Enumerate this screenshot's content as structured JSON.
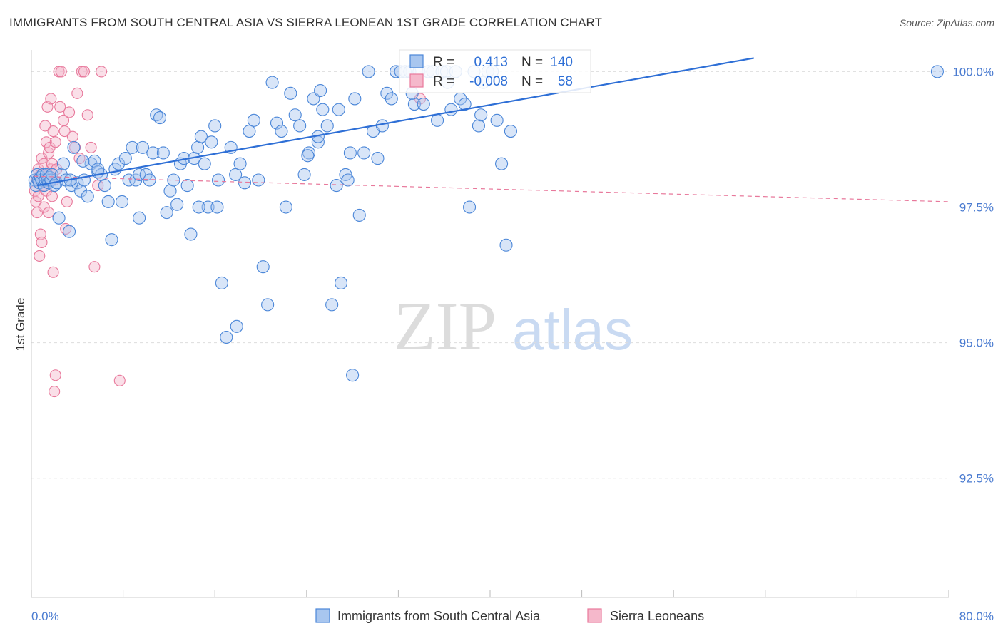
{
  "title": "IMMIGRANTS FROM SOUTH CENTRAL ASIA VS SIERRA LEONEAN 1ST GRADE CORRELATION CHART",
  "source": "Source: ZipAtlas.com",
  "watermark": {
    "zip": "ZIP",
    "atlas": "atlas"
  },
  "colors": {
    "blue": "#4a86d8",
    "blue_fill": "#a8c6ef",
    "pink": "#e8789b",
    "pink_fill": "#f5b8cb",
    "trend_blue": "#2e6fd6",
    "trend_pink": "#e8789b",
    "grid": "#dddddd",
    "tick_text": "#4a7bd0"
  },
  "stats": {
    "series1": {
      "r_label": "R =",
      "r_value": "0.413",
      "n_label": "N =",
      "n_value": "140"
    },
    "series2": {
      "r_label": "R =",
      "r_value": "-0.008",
      "n_label": "N =",
      "n_value": "58"
    }
  },
  "chart_data": {
    "type": "scatter",
    "title": "IMMIGRANTS FROM SOUTH CENTRAL ASIA VS SIERRA LEONEAN 1ST GRADE CORRELATION CHART",
    "xlabel": "",
    "ylabel": "1st Grade",
    "xlim": [
      0,
      80
    ],
    "ylim": [
      90.3,
      100.4
    ],
    "x_tick_labels": [
      {
        "value": 0,
        "label": "0.0%"
      },
      {
        "value": 80,
        "label": "80.0%"
      }
    ],
    "y_tick_labels": [
      {
        "value": 100,
        "label": "100.0%"
      },
      {
        "value": 97.5,
        "label": "97.5%"
      },
      {
        "value": 95,
        "label": "95.0%"
      },
      {
        "value": 92.5,
        "label": "92.5%"
      }
    ],
    "legend": [
      "Immigrants from South Central Asia",
      "Sierra Leoneans"
    ],
    "series": [
      {
        "name": "Immigrants from South Central Asia",
        "r": 0.413,
        "n": 140,
        "trend": {
          "x": [
            0.5,
            63
          ],
          "y": [
            97.9,
            100.25
          ]
        },
        "points": [
          [
            0.3,
            98.0
          ],
          [
            0.4,
            97.9
          ],
          [
            0.5,
            98.1
          ],
          [
            0.6,
            98.0
          ],
          [
            0.7,
            97.95
          ],
          [
            0.8,
            98.05
          ],
          [
            0.9,
            98.0
          ],
          [
            1.0,
            98.1
          ],
          [
            1.1,
            97.9
          ],
          [
            1.2,
            98.0
          ],
          [
            1.3,
            98.1
          ],
          [
            1.4,
            98.0
          ],
          [
            1.5,
            97.95
          ],
          [
            1.6,
            98.05
          ],
          [
            1.7,
            98.0
          ],
          [
            1.8,
            98.1
          ],
          [
            2.0,
            97.9
          ],
          [
            2.2,
            97.95
          ],
          [
            2.4,
            97.3
          ],
          [
            2.6,
            98.1
          ],
          [
            2.8,
            98.3
          ],
          [
            3.0,
            98.0
          ],
          [
            3.3,
            97.05
          ],
          [
            3.5,
            97.9
          ],
          [
            3.7,
            98.6
          ],
          [
            4.0,
            97.95
          ],
          [
            4.3,
            97.8
          ],
          [
            4.6,
            98.0
          ],
          [
            4.9,
            97.7
          ],
          [
            5.2,
            98.3
          ],
          [
            5.5,
            98.35
          ],
          [
            5.8,
            98.15
          ],
          [
            6.1,
            98.1
          ],
          [
            6.4,
            97.9
          ],
          [
            6.7,
            97.6
          ],
          [
            7.0,
            96.9
          ],
          [
            7.3,
            98.2
          ],
          [
            7.6,
            98.3
          ],
          [
            7.9,
            97.6
          ],
          [
            8.2,
            98.4
          ],
          [
            8.5,
            98.0
          ],
          [
            8.8,
            98.6
          ],
          [
            9.1,
            98.0
          ],
          [
            9.4,
            98.1
          ],
          [
            9.7,
            98.6
          ],
          [
            10.0,
            98.1
          ],
          [
            10.3,
            98.0
          ],
          [
            10.6,
            98.5
          ],
          [
            10.9,
            99.2
          ],
          [
            11.2,
            99.15
          ],
          [
            11.5,
            98.5
          ],
          [
            11.8,
            97.4
          ],
          [
            12.1,
            97.8
          ],
          [
            12.4,
            98.0
          ],
          [
            12.7,
            97.55
          ],
          [
            13.0,
            98.3
          ],
          [
            13.3,
            98.4
          ],
          [
            13.6,
            97.9
          ],
          [
            13.9,
            97.0
          ],
          [
            14.2,
            98.4
          ],
          [
            14.5,
            98.6
          ],
          [
            14.8,
            98.8
          ],
          [
            15.1,
            98.3
          ],
          [
            15.4,
            97.5
          ],
          [
            15.7,
            98.7
          ],
          [
            16.0,
            99.0
          ],
          [
            16.3,
            98.0
          ],
          [
            16.6,
            96.1
          ],
          [
            17.0,
            95.1
          ],
          [
            17.4,
            98.6
          ],
          [
            17.8,
            98.1
          ],
          [
            18.2,
            98.3
          ],
          [
            18.6,
            97.95
          ],
          [
            19.0,
            98.9
          ],
          [
            19.4,
            99.1
          ],
          [
            19.8,
            98.0
          ],
          [
            20.2,
            96.4
          ],
          [
            20.6,
            95.7
          ],
          [
            21.0,
            99.8
          ],
          [
            21.4,
            99.05
          ],
          [
            21.8,
            98.9
          ],
          [
            22.2,
            97.5
          ],
          [
            22.6,
            99.6
          ],
          [
            23.0,
            99.2
          ],
          [
            23.4,
            99.0
          ],
          [
            23.8,
            98.1
          ],
          [
            24.2,
            98.5
          ],
          [
            24.6,
            99.5
          ],
          [
            25.0,
            98.7
          ],
          [
            25.4,
            99.3
          ],
          [
            25.8,
            99.0
          ],
          [
            26.2,
            95.7
          ],
          [
            26.6,
            97.9
          ],
          [
            27.0,
            96.1
          ],
          [
            27.4,
            98.1
          ],
          [
            27.8,
            98.5
          ],
          [
            28.2,
            99.5
          ],
          [
            28.6,
            97.35
          ],
          [
            29.0,
            98.5
          ],
          [
            29.4,
            100.0
          ],
          [
            29.8,
            98.9
          ],
          [
            30.2,
            98.4
          ],
          [
            30.6,
            99.0
          ],
          [
            31.0,
            99.6
          ],
          [
            31.4,
            99.5
          ],
          [
            31.8,
            100.0
          ],
          [
            32.2,
            100.0
          ],
          [
            32.6,
            100.0
          ],
          [
            33.0,
            100.0
          ],
          [
            33.4,
            99.4
          ],
          [
            33.8,
            100.0
          ],
          [
            34.2,
            99.4
          ],
          [
            34.6,
            100.0
          ],
          [
            35.0,
            100.0
          ],
          [
            35.4,
            99.1
          ],
          [
            35.8,
            100.0
          ],
          [
            36.2,
            100.0
          ],
          [
            36.6,
            99.3
          ],
          [
            37.0,
            100.0
          ],
          [
            37.4,
            99.5
          ],
          [
            37.8,
            99.4
          ],
          [
            38.2,
            97.5
          ],
          [
            38.6,
            100.0
          ],
          [
            39.0,
            99.0
          ],
          [
            39.4,
            99.8
          ],
          [
            39.8,
            100.0
          ],
          [
            40.2,
            100.0
          ],
          [
            40.6,
            99.1
          ],
          [
            41.0,
            98.3
          ],
          [
            41.4,
            96.8
          ],
          [
            41.8,
            98.9
          ],
          [
            25.2,
            99.65
          ],
          [
            5.8,
            98.2
          ],
          [
            4.5,
            98.35
          ],
          [
            26.8,
            99.3
          ],
          [
            36.3,
            99.8
          ],
          [
            39.2,
            99.2
          ],
          [
            79.0,
            100.0
          ],
          [
            28.0,
            94.4
          ],
          [
            17.9,
            95.3
          ],
          [
            24.1,
            98.45
          ],
          [
            33.2,
            99.6
          ],
          [
            14.6,
            97.5
          ],
          [
            27.6,
            98.0
          ],
          [
            16.2,
            97.5
          ],
          [
            9.4,
            97.3
          ],
          [
            25.0,
            98.8
          ],
          [
            3.4,
            98.0
          ]
        ]
      },
      {
        "name": "Sierra Leoneans",
        "r": -0.008,
        "n": 58,
        "trend": {
          "x": [
            0.2,
            80
          ],
          "y": [
            98.07,
            97.6
          ]
        },
        "points": [
          [
            0.3,
            97.8
          ],
          [
            0.4,
            97.6
          ],
          [
            0.5,
            98.0
          ],
          [
            0.5,
            97.4
          ],
          [
            0.6,
            98.2
          ],
          [
            0.6,
            97.7
          ],
          [
            0.7,
            98.0
          ],
          [
            0.7,
            96.6
          ],
          [
            0.8,
            98.1
          ],
          [
            0.8,
            97.0
          ],
          [
            0.9,
            98.4
          ],
          [
            0.9,
            96.85
          ],
          [
            1.0,
            98.0
          ],
          [
            1.0,
            97.9
          ],
          [
            1.1,
            98.3
          ],
          [
            1.1,
            97.5
          ],
          [
            1.2,
            98.0
          ],
          [
            1.2,
            99.0
          ],
          [
            1.3,
            97.8
          ],
          [
            1.3,
            98.7
          ],
          [
            1.4,
            98.1
          ],
          [
            1.4,
            99.35
          ],
          [
            1.5,
            98.5
          ],
          [
            1.5,
            97.4
          ],
          [
            1.6,
            98.0
          ],
          [
            1.6,
            98.6
          ],
          [
            1.7,
            99.5
          ],
          [
            1.7,
            98.2
          ],
          [
            1.8,
            98.3
          ],
          [
            1.8,
            97.7
          ],
          [
            1.9,
            98.9
          ],
          [
            1.9,
            96.3
          ],
          [
            2.0,
            98.0
          ],
          [
            2.0,
            94.1
          ],
          [
            2.1,
            94.4
          ],
          [
            2.2,
            98.2
          ],
          [
            2.4,
            100.0
          ],
          [
            2.5,
            99.35
          ],
          [
            2.6,
            100.0
          ],
          [
            2.8,
            99.1
          ],
          [
            2.9,
            98.9
          ],
          [
            3.0,
            97.1
          ],
          [
            3.1,
            97.6
          ],
          [
            3.3,
            99.25
          ],
          [
            3.6,
            98.8
          ],
          [
            3.8,
            98.6
          ],
          [
            4.0,
            99.6
          ],
          [
            4.2,
            98.4
          ],
          [
            4.4,
            100.0
          ],
          [
            4.6,
            100.0
          ],
          [
            4.9,
            99.2
          ],
          [
            5.2,
            98.6
          ],
          [
            5.5,
            96.4
          ],
          [
            5.8,
            97.9
          ],
          [
            6.1,
            100.0
          ],
          [
            7.7,
            94.3
          ],
          [
            33.9,
            99.5
          ],
          [
            2.1,
            98.7
          ]
        ]
      }
    ]
  },
  "legend_labels": {
    "series1": "Immigrants from South Central Asia",
    "series2": "Sierra Leoneans"
  }
}
